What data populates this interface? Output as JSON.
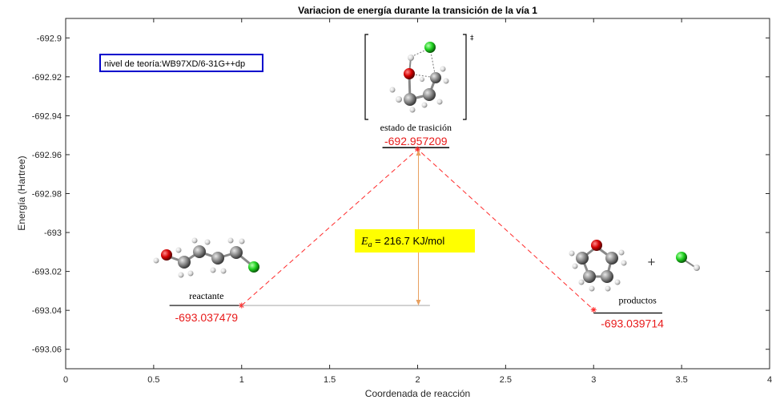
{
  "chart_data": {
    "type": "line",
    "title": "Variacion de energía durante la transición de la vía 1",
    "xlabel": "Coordenada de reacción",
    "ylabel": "Energía (Hartree)",
    "xlim": [
      0,
      4
    ],
    "ylim": [
      -693.07,
      -692.89
    ],
    "x_ticks": [
      0,
      0.5,
      1,
      1.5,
      2,
      2.5,
      3,
      3.5,
      4
    ],
    "x_tick_labels": [
      "0",
      "0.5",
      "1",
      "1.5",
      "2",
      "2.5",
      "3",
      "3.5",
      "4"
    ],
    "y_ticks": [
      -692.9,
      -692.92,
      -692.94,
      -692.96,
      -692.98,
      -693,
      -693.02,
      -693.04,
      -693.06
    ],
    "y_tick_labels": [
      "-692.9",
      "-692.92",
      "-692.94",
      "-692.96",
      "-692.98",
      "-693",
      "-693.02",
      "-693.04",
      "-693.06"
    ],
    "grid": false,
    "series": [
      {
        "color": "#ff2a2a",
        "style": "dashed",
        "marker": "*",
        "x": [
          1,
          2,
          3
        ],
        "y": [
          -693.037479,
          -692.957209,
          -693.039714
        ]
      }
    ],
    "levels": [
      {
        "label": "reactante",
        "energy_label": "-693.037479",
        "x": 1,
        "y": -693.037479
      },
      {
        "label": "estado de trasición",
        "energy_label": "-692.957209",
        "x": 2,
        "y": -692.957209
      },
      {
        "label": "productos",
        "energy_label": "-693.039714",
        "x": 3,
        "y": -693.039714
      }
    ],
    "annotations": {
      "theory_level": "nivel de teoría:WB97XD/6-31G++dp",
      "activation_energy": {
        "symbol": "E",
        "subscript": "a",
        "text": " = 216.7 KJ/mol",
        "x": 2,
        "y_from": -693.037479,
        "y_to": -692.957209
      },
      "transition_state_mark": "‡",
      "plus_sign": "+"
    },
    "colors": {
      "energy_labels": "#e81b1b",
      "arrow": "#e8a060",
      "ea_box": "#ffff00",
      "theory_box_border": "#0000cc",
      "oxygen": "#d40000",
      "chlorine": "#1fd11f",
      "carbon": "#808080",
      "hydrogen": "#e0e0e0"
    }
  }
}
